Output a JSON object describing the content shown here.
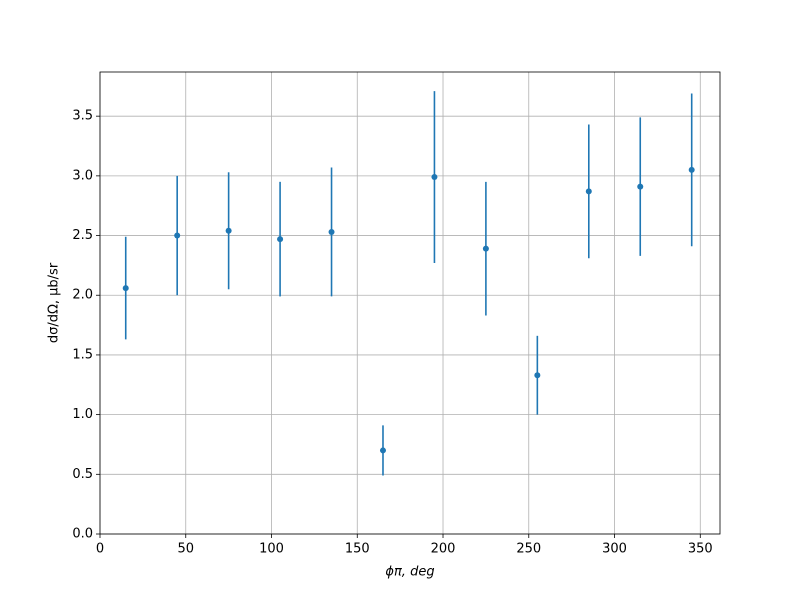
{
  "chart_data": {
    "type": "errorbar",
    "xlabel": "ϕπ, deg",
    "ylabel": "dσ/dΩ, μb/sr",
    "series": [
      {
        "color": "#1f77b4",
        "x": [
          15,
          45,
          75,
          105,
          135,
          165,
          195,
          225,
          255,
          285,
          315,
          345
        ],
        "values": [
          2.06,
          2.5,
          2.54,
          2.47,
          2.53,
          0.7,
          2.99,
          2.39,
          1.33,
          2.87,
          2.91,
          3.05
        ],
        "errors": [
          0.43,
          0.5,
          0.49,
          0.48,
          0.54,
          0.21,
          0.72,
          0.56,
          0.33,
          0.56,
          0.58,
          0.64
        ]
      }
    ],
    "xlim": [
      0,
      361.5
    ],
    "ylim": [
      0,
      3.87
    ],
    "xticks": [
      0,
      50,
      100,
      150,
      200,
      250,
      300,
      350
    ],
    "yticks": [
      {
        "value": 0,
        "label": "0.0"
      },
      0.5,
      {
        "value": 1,
        "label": "1.0"
      },
      1.5,
      {
        "value": 2,
        "label": "2.0"
      },
      2.5,
      {
        "value": 3,
        "label": "3.0"
      },
      3.5
    ],
    "grid": true
  }
}
